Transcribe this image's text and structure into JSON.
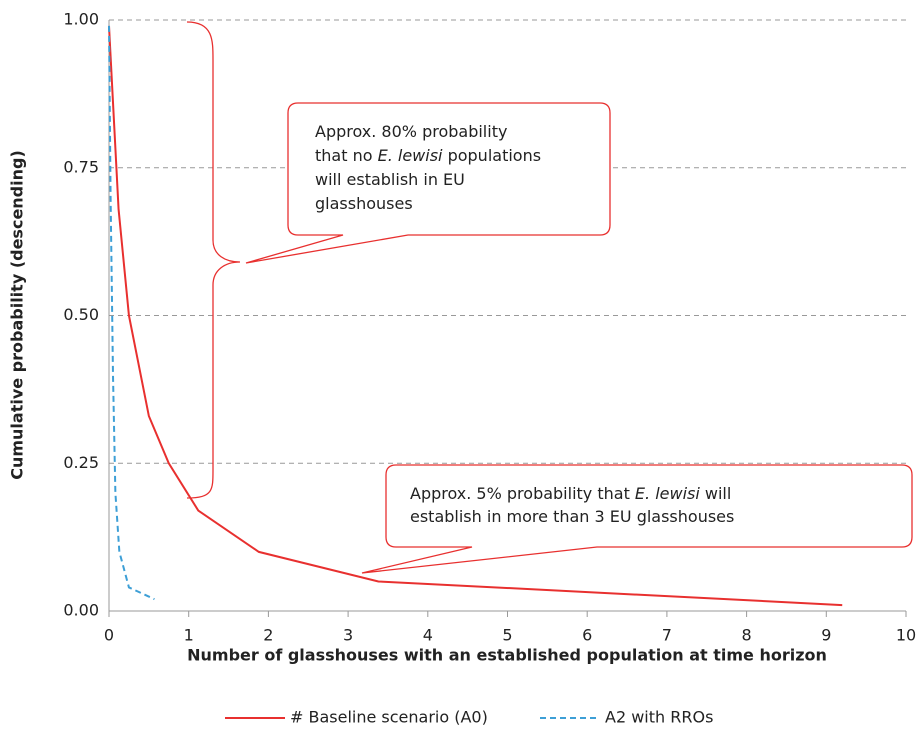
{
  "chart_data": {
    "type": "line",
    "xlabel": "Number of glasshouses with an established population at time horizon",
    "ylabel": "Cumulative probability (descending)",
    "xlim": [
      0,
      10
    ],
    "ylim": [
      0,
      1
    ],
    "xticks": [
      0,
      1,
      2,
      3,
      4,
      5,
      6,
      7,
      8,
      9,
      10
    ],
    "yticks": [
      {
        "value": 0,
        "label": "0.00"
      },
      {
        "value": 0.25,
        "label": "0.25"
      },
      {
        "value": 0.5,
        "label": "0.50"
      },
      {
        "value": 0.75,
        "label": "0.75"
      },
      {
        "value": 1,
        "label": "1.00"
      }
    ],
    "grid": true,
    "legend": "bottom",
    "series": [
      {
        "name": "# Baseline scenario (A0)",
        "color": "#e8302f",
        "dash": false,
        "x": [
          0,
          0.12,
          0.25,
          0.5,
          0.75,
          1.12,
          1.88,
          3.38,
          9.2
        ],
        "values": [
          0.99,
          0.68,
          0.5,
          0.33,
          0.25,
          0.17,
          0.1,
          0.05,
          0.01
        ]
      },
      {
        "name": "A2 with RROs",
        "color": "#3d9fd6",
        "dash": true,
        "x": [
          0,
          0.02,
          0.05,
          0.08,
          0.13,
          0.25,
          0.57
        ],
        "values": [
          0.99,
          0.7,
          0.4,
          0.2,
          0.1,
          0.04,
          0.02
        ]
      }
    ],
    "annotations": [
      {
        "lines": [
          [
            "Approx. 80% probability"
          ],
          [
            "that no ",
            {
              "text": "E. lewisi",
              "italic": true
            },
            " populations"
          ],
          [
            "will establish in EU"
          ],
          [
            "glasshouses"
          ]
        ]
      },
      {
        "lines": [
          [
            "Approx. 5% probability that ",
            {
              "text": "E. lewisi",
              "italic": true
            },
            " will"
          ],
          [
            "establish in more than 3 EU glasshouses"
          ]
        ]
      }
    ]
  }
}
